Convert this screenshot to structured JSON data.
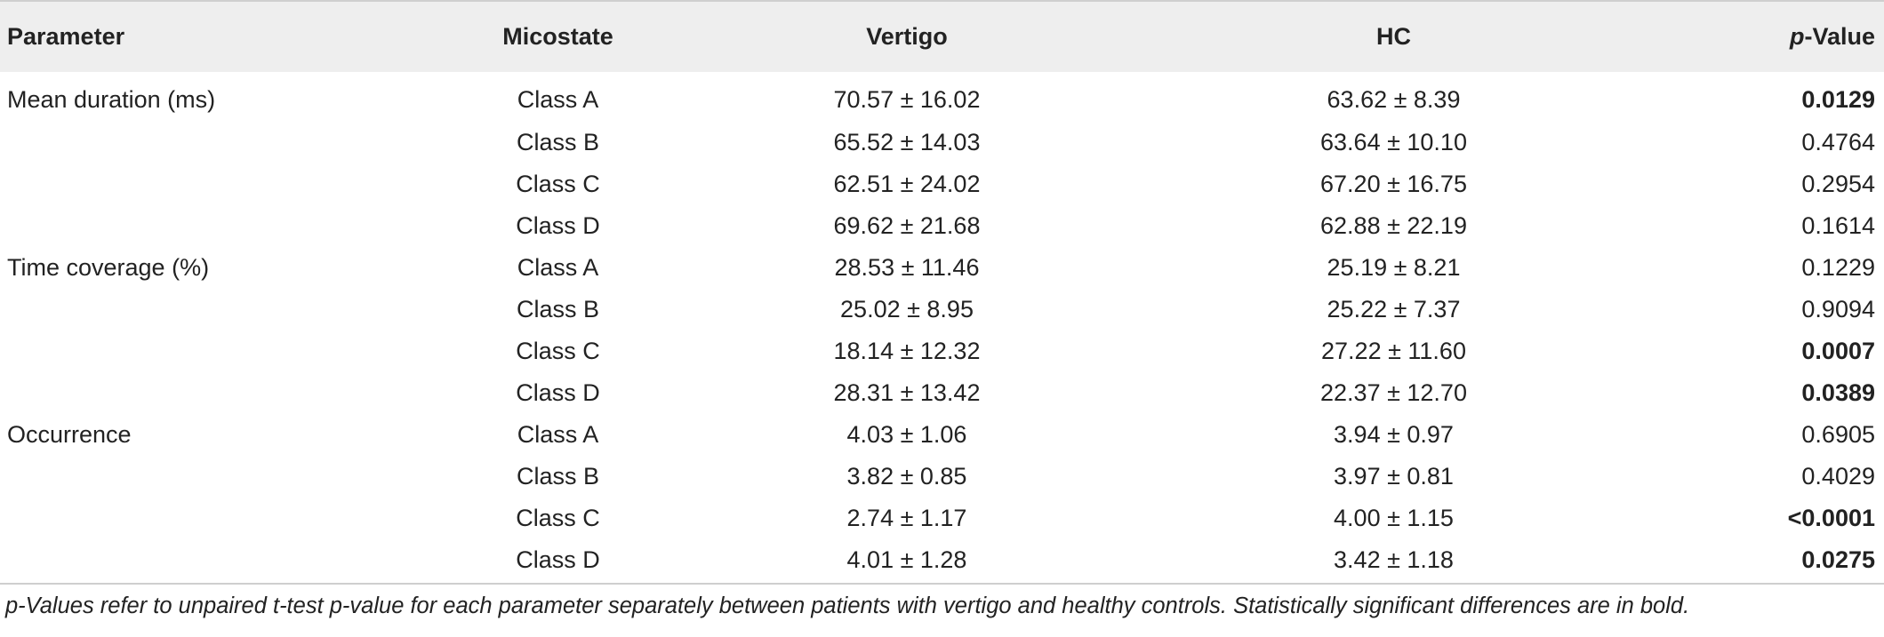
{
  "table": {
    "headers": {
      "parameter": "Parameter",
      "microstate": "Micostate",
      "vertigo": "Vertigo",
      "hc": "HC",
      "p_value": "p-Value",
      "p_value_italic_prefix": "p",
      "p_value_suffix": "-Value"
    },
    "rows": [
      {
        "parameter": "Mean duration (ms)",
        "microstate": "Class A",
        "vertigo": "70.57 ± 16.02",
        "hc": "63.62 ± 8.39",
        "p_value": "0.0129",
        "significant": true
      },
      {
        "parameter": "",
        "microstate": "Class B",
        "vertigo": "65.52 ± 14.03",
        "hc": "63.64 ± 10.10",
        "p_value": "0.4764",
        "significant": false
      },
      {
        "parameter": "",
        "microstate": "Class C",
        "vertigo": "62.51 ± 24.02",
        "hc": "67.20 ± 16.75",
        "p_value": "0.2954",
        "significant": false
      },
      {
        "parameter": "",
        "microstate": "Class D",
        "vertigo": "69.62 ± 21.68",
        "hc": "62.88 ± 22.19",
        "p_value": "0.1614",
        "significant": false
      },
      {
        "parameter": "Time coverage (%)",
        "microstate": "Class A",
        "vertigo": "28.53 ± 11.46",
        "hc": "25.19 ± 8.21",
        "p_value": "0.1229",
        "significant": false
      },
      {
        "parameter": "",
        "microstate": "Class B",
        "vertigo": "25.02 ± 8.95",
        "hc": "25.22 ± 7.37",
        "p_value": "0.9094",
        "significant": false
      },
      {
        "parameter": "",
        "microstate": "Class C",
        "vertigo": "18.14 ± 12.32",
        "hc": "27.22 ± 11.60",
        "p_value": "0.0007",
        "significant": true
      },
      {
        "parameter": "",
        "microstate": "Class D",
        "vertigo": "28.31 ± 13.42",
        "hc": "22.37 ± 12.70",
        "p_value": "0.0389",
        "significant": true
      },
      {
        "parameter": "Occurrence",
        "microstate": "Class A",
        "vertigo": "4.03 ± 1.06",
        "hc": "3.94 ± 0.97",
        "p_value": "0.6905",
        "significant": false
      },
      {
        "parameter": "",
        "microstate": "Class B",
        "vertigo": "3.82 ± 0.85",
        "hc": "3.97 ± 0.81",
        "p_value": "0.4029",
        "significant": false
      },
      {
        "parameter": "",
        "microstate": "Class C",
        "vertigo": "2.74 ± 1.17",
        "hc": "4.00 ± 1.15",
        "p_value": "<0.0001",
        "significant": true
      },
      {
        "parameter": "",
        "microstate": "Class D",
        "vertigo": "4.01 ± 1.28",
        "hc": "3.42 ± 1.18",
        "p_value": "0.0275",
        "significant": true
      }
    ]
  },
  "footnote": "p-Values refer to unpaired t-test p-value for each parameter separately between patients with vertigo and healthy controls. Statistically significant differences are in bold.",
  "colors": {
    "header_background": "#eeeeee",
    "rule": "#cfcfcf",
    "text": "#222222"
  }
}
